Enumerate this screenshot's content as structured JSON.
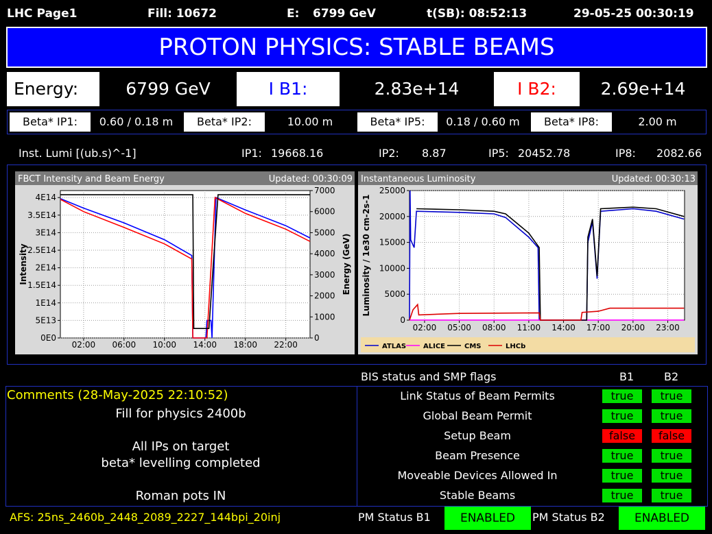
{
  "header": {
    "page": "LHC Page1",
    "fill": "Fill: 10672",
    "energy_label": "E:",
    "energy": "6799 GeV",
    "tsb": "t(SB): 08:52:13",
    "datetime": "29-05-25 00:30:19"
  },
  "mode": "PROTON PHYSICS: STABLE BEAMS",
  "beam_row": {
    "energy_label": "Energy:",
    "energy": "6799 GeV",
    "ib1_label": "I B1:",
    "ib1": "2.83e+14",
    "ib2_label": "I B2:",
    "ib2": "2.69e+14"
  },
  "beta_star": [
    {
      "label": "Beta* IP1:",
      "value": "0.60 / 0.18 m"
    },
    {
      "label": "Beta* IP2:",
      "value": "10.00 m"
    },
    {
      "label": "Beta* IP5:",
      "value": "0.18 / 0.60 m"
    },
    {
      "label": "Beta* IP8:",
      "value": "2.00 m"
    }
  ],
  "inst_lumi": {
    "label": "Inst. Lumi [(ub.s)^-1]",
    "ips": [
      {
        "label": "IP1:",
        "value": "19668.16"
      },
      {
        "label": "IP2:",
        "value": "8.87"
      },
      {
        "label": "IP5:",
        "value": "20452.78"
      },
      {
        "label": "IP8:",
        "value": "2082.66"
      }
    ]
  },
  "chart_data": [
    {
      "type": "line",
      "title": "FBCT Intensity and Beam Energy",
      "updated": "Updated: 00:30:09",
      "ylabel": "Intensity",
      "y2label": "Energy (GeV)",
      "grid": true,
      "xlim": [
        -0.3,
        24.4
      ],
      "xticks": [
        {
          "value": 2,
          "label": "02:00"
        },
        {
          "value": 6,
          "label": "06:00"
        },
        {
          "value": 10,
          "label": "10:00"
        },
        {
          "value": 14,
          "label": "14:00"
        },
        {
          "value": 18,
          "label": "18:00"
        },
        {
          "value": 22,
          "label": "22:00"
        }
      ],
      "ylim": [
        0,
        420000000000000.0
      ],
      "yticks": [
        {
          "value": 0,
          "label": "0E0"
        },
        {
          "value": 50000000000000.0,
          "label": "5E13"
        },
        {
          "value": 100000000000000.0,
          "label": "1E14"
        },
        {
          "value": 150000000000000.0,
          "label": "1.5E14"
        },
        {
          "value": 200000000000000.0,
          "label": "2E14"
        },
        {
          "value": 250000000000000.0,
          "label": "2.5E14"
        },
        {
          "value": 300000000000000.0,
          "label": "3E14"
        },
        {
          "value": 350000000000000.0,
          "label": "3.5E14"
        },
        {
          "value": 400000000000000.0,
          "label": "4E14"
        }
      ],
      "y2lim": [
        0,
        7000
      ],
      "y2ticks": [
        0,
        1000,
        2000,
        3000,
        4000,
        5000,
        6000,
        7000
      ],
      "series": [
        {
          "color": "#0000ff",
          "x": [
            -0.3,
            2,
            6,
            10,
            12.7,
            12.8,
            14.1,
            14.2,
            14.6,
            14.7,
            15.1,
            18,
            22,
            24.4
          ],
          "values": [
            397000000000000.0,
            370000000000000.0,
            328000000000000.0,
            280000000000000.0,
            235000000000000.0,
            0,
            0,
            50000000000000.0,
            50000000000000.0,
            0,
            400000000000000.0,
            365000000000000.0,
            320000000000000.0,
            285000000000000.0
          ]
        },
        {
          "color": "#ff0000",
          "x": [
            -0.3,
            2,
            6,
            10,
            12.7,
            12.8,
            14.2,
            15.0,
            18,
            22,
            24.4
          ],
          "values": [
            395000000000000.0,
            360000000000000.0,
            315000000000000.0,
            268000000000000.0,
            225000000000000.0,
            0,
            0,
            400000000000000.0,
            355000000000000.0,
            310000000000000.0,
            275000000000000.0
          ]
        },
        {
          "color": "#000000",
          "axis": "y2",
          "x": [
            -0.3,
            12.8,
            12.9,
            14.4,
            15.3,
            24.4
          ],
          "values": [
            6800,
            6800,
            450,
            450,
            6800,
            6800
          ]
        }
      ]
    },
    {
      "type": "line",
      "title": "Instantaneous Luminosity",
      "updated": "Updated: 00:30:13",
      "ylabel": "Luminosity / 1e30 cm-2s-1",
      "grid": true,
      "xlim": [
        0.7,
        24.45
      ],
      "xticks": [
        {
          "value": 2,
          "label": "02:00"
        },
        {
          "value": 5,
          "label": "05:00"
        },
        {
          "value": 8,
          "label": "08:00"
        },
        {
          "value": 11,
          "label": "11:00"
        },
        {
          "value": 14,
          "label": "14:00"
        },
        {
          "value": 17,
          "label": "17:00"
        },
        {
          "value": 20,
          "label": "20:00"
        },
        {
          "value": 23,
          "label": "23:00"
        }
      ],
      "ylim": [
        0,
        25000
      ],
      "yticks": [
        0,
        5000,
        10000,
        15000,
        20000,
        25000
      ],
      "legend": "bottom",
      "series": [
        {
          "name": "ATLAS",
          "color": "#0000cc",
          "x": [
            0.7,
            0.75,
            0.8,
            1.1,
            1.3,
            5,
            8,
            9,
            11,
            11.8,
            11.9,
            16.0,
            16.1,
            16.5,
            16.9,
            17.2,
            20,
            22,
            24.4
          ],
          "values": [
            0,
            25000,
            15500,
            14000,
            21000,
            20800,
            20500,
            19800,
            16000,
            14000,
            0,
            0,
            15000,
            19000,
            8000,
            21000,
            21500,
            21000,
            19500
          ]
        },
        {
          "name": "ALICE",
          "color": "#ff00ff",
          "x": [
            0.7,
            24.4
          ],
          "values": [
            10,
            10
          ]
        },
        {
          "name": "CMS",
          "color": "#000000",
          "x": [
            1.3,
            5,
            8,
            9,
            11,
            11.9,
            12,
            16,
            16.1,
            16.5,
            16.9,
            17.2,
            20,
            22,
            24.4
          ],
          "values": [
            21500,
            21300,
            21000,
            20500,
            16800,
            14000,
            0,
            0,
            16000,
            19500,
            8500,
            21500,
            21800,
            21500,
            20000
          ]
        },
        {
          "name": "LHCb",
          "color": "#dd0000",
          "x": [
            0.7,
            1.0,
            1.4,
            1.5,
            5,
            11.9,
            12,
            15.5,
            15.6,
            17,
            18,
            24.4
          ],
          "values": [
            0,
            2000,
            3000,
            1000,
            1300,
            1400,
            0,
            0,
            1500,
            1700,
            2300,
            2300
          ]
        }
      ]
    }
  ],
  "bis": {
    "title": "BIS status and SMP flags",
    "columns": [
      "B1",
      "B2"
    ],
    "rows": [
      {
        "label": "Link Status of Beam Permits",
        "values": [
          "true",
          "true"
        ]
      },
      {
        "label": "Global Beam Permit",
        "values": [
          "true",
          "true"
        ]
      },
      {
        "label": "Setup Beam",
        "values": [
          "false",
          "false"
        ]
      },
      {
        "label": "Beam Presence",
        "values": [
          "true",
          "true"
        ]
      },
      {
        "label": "Moveable Devices Allowed In",
        "values": [
          "true",
          "true"
        ]
      },
      {
        "label": "Stable Beams",
        "values": [
          "true",
          "true"
        ]
      }
    ]
  },
  "comments": {
    "title": "Comments (28-May-2025 22:10:52)",
    "lines": [
      "Fill for physics 2400b",
      "All IPs on target",
      "beta* levelling completed",
      "Roman pots IN"
    ]
  },
  "footer": {
    "afs": "AFS: 25ns_2460b_2448_2089_2227_144bpi_20inj",
    "pm": [
      {
        "label": "PM Status B1",
        "value": "ENABLED"
      },
      {
        "label": "PM Status B2",
        "value": "ENABLED"
      }
    ]
  }
}
